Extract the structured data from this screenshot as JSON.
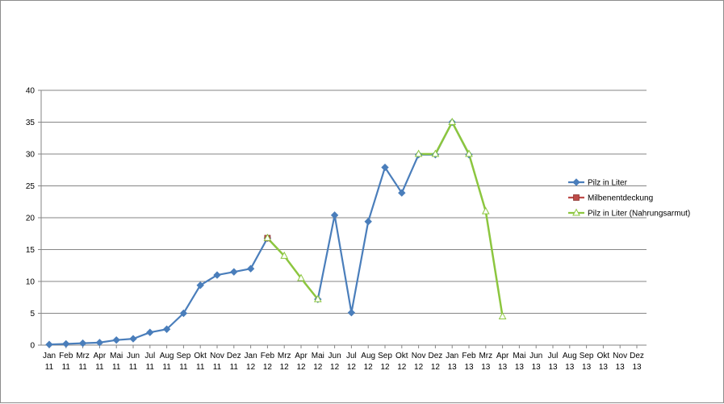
{
  "chart_data": {
    "type": "line",
    "title": "",
    "xlabel": "",
    "ylabel": "",
    "ylim": [
      0,
      40
    ],
    "yticks": [
      0,
      5,
      10,
      15,
      20,
      25,
      30,
      35,
      40
    ],
    "grid": "horizontal",
    "legend_position": "right",
    "categories": [
      [
        "Jan",
        "11"
      ],
      [
        "Feb",
        "11"
      ],
      [
        "Mrz",
        "11"
      ],
      [
        "Apr",
        "11"
      ],
      [
        "Mai",
        "11"
      ],
      [
        "Jun",
        "11"
      ],
      [
        "Jul",
        "11"
      ],
      [
        "Aug",
        "11"
      ],
      [
        "Sep",
        "11"
      ],
      [
        "Okt",
        "11"
      ],
      [
        "Nov",
        "11"
      ],
      [
        "Dez",
        "11"
      ],
      [
        "Jan",
        "12"
      ],
      [
        "Feb",
        "12"
      ],
      [
        "Mrz",
        "12"
      ],
      [
        "Apr",
        "12"
      ],
      [
        "Mai",
        "12"
      ],
      [
        "Jun",
        "12"
      ],
      [
        "Jul",
        "12"
      ],
      [
        "Aug",
        "12"
      ],
      [
        "Sep",
        "12"
      ],
      [
        "Okt",
        "12"
      ],
      [
        "Nov",
        "12"
      ],
      [
        "Dez",
        "12"
      ],
      [
        "Jan",
        "13"
      ],
      [
        "Feb",
        "13"
      ],
      [
        "Mrz",
        "13"
      ],
      [
        "Apr",
        "13"
      ],
      [
        "Mai",
        "13"
      ],
      [
        "Jun",
        "13"
      ],
      [
        "Jul",
        "13"
      ],
      [
        "Aug",
        "13"
      ],
      [
        "Sep",
        "13"
      ],
      [
        "Okt",
        "13"
      ],
      [
        "Nov",
        "13"
      ],
      [
        "Dez",
        "13"
      ]
    ],
    "series": [
      {
        "name": "Pilz in Liter",
        "color": "#4a7ebb",
        "marker": "diamond",
        "values": [
          0.1,
          0.2,
          0.3,
          0.4,
          0.8,
          1.0,
          2.0,
          2.5,
          5.0,
          9.4,
          11.0,
          11.5,
          12.0,
          16.8,
          null,
          null,
          7.2,
          20.4,
          5.1,
          19.4,
          27.9,
          23.9,
          29.9,
          29.9,
          35.0,
          29.9,
          null,
          null,
          null,
          null,
          null,
          null,
          null,
          null,
          null,
          null
        ]
      },
      {
        "name": "Milbenentdeckung",
        "color": "#be4b48",
        "marker": "square",
        "values": [
          null,
          null,
          null,
          null,
          null,
          null,
          null,
          null,
          null,
          null,
          null,
          null,
          null,
          16.8,
          null,
          null,
          null,
          null,
          null,
          null,
          null,
          null,
          null,
          null,
          null,
          null,
          null,
          null,
          null,
          null,
          null,
          null,
          null,
          null,
          null,
          null
        ]
      },
      {
        "name": "Pilz in Liter (Nahrungsarmut)",
        "color": "#8cc63f",
        "marker": "triangle",
        "values": [
          null,
          null,
          null,
          null,
          null,
          null,
          null,
          null,
          null,
          null,
          null,
          null,
          null,
          16.8,
          14.0,
          10.5,
          7.2,
          null,
          null,
          null,
          null,
          null,
          30.0,
          30.0,
          35.0,
          30.0,
          21.0,
          4.5,
          null,
          null,
          null,
          null,
          null,
          null,
          null,
          null
        ]
      }
    ]
  }
}
